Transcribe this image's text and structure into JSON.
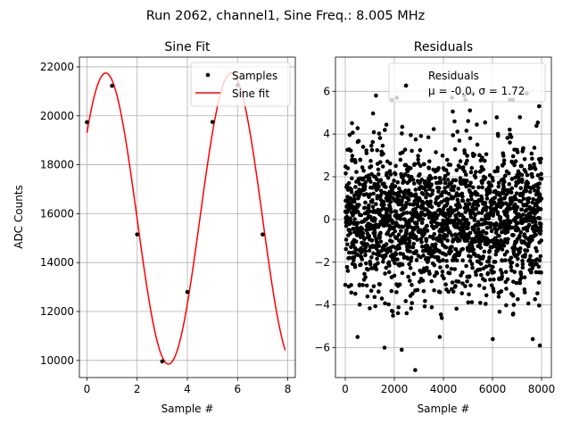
{
  "figure": {
    "suptitle": "Run 2062, channel1, Sine Freq.: 8.005 MHz"
  },
  "chart_data": [
    {
      "type": "line",
      "title": "Sine Fit",
      "xlabel": "Sample #",
      "ylabel": "ADC Counts",
      "xlim": [
        -0.3,
        8.3
      ],
      "ylim": [
        9300,
        22400
      ],
      "xticks": [
        0,
        2,
        4,
        6,
        8
      ],
      "yticks": [
        10000,
        12000,
        14000,
        16000,
        18000,
        20000,
        22000
      ],
      "grid": true,
      "legend_position": "top-right",
      "legend": [
        "Samples",
        "Sine fit"
      ],
      "samples": {
        "name": "Samples",
        "x": [
          0,
          1,
          2,
          3,
          4,
          5,
          6,
          7
        ],
        "y": [
          19740,
          21230,
          15150,
          9960,
          12800,
          19750,
          21250,
          15150
        ]
      },
      "fit": {
        "name": "Sine fit",
        "color": "#ff0000",
        "offset": 15800,
        "amplitude": 5950,
        "cycles_per_sample": 0.2,
        "phase_rad": 0.63,
        "x_range": [
          0,
          7.9
        ]
      }
    },
    {
      "type": "scatter",
      "title": "Residuals",
      "xlabel": "Sample #",
      "ylabel": "",
      "xlim": [
        -400,
        8400
      ],
      "ylim": [
        -7.4,
        7.6
      ],
      "xticks": [
        0,
        2000,
        4000,
        6000,
        8000
      ],
      "yticks": [
        -6,
        -4,
        -2,
        0,
        2,
        4,
        6
      ],
      "grid": true,
      "legend_position": "top-right",
      "legend": [
        "Residuals",
        "μ = -0.0, σ = 1.72"
      ],
      "n_points": 8000,
      "mean": -0.0,
      "sigma": 1.72,
      "outliers": [
        {
          "x": 2850,
          "y": -7.05
        },
        {
          "x": 1600,
          "y": -6.0
        },
        {
          "x": 2300,
          "y": -6.1
        },
        {
          "x": 500,
          "y": -5.5
        },
        {
          "x": 3850,
          "y": -5.5
        },
        {
          "x": 7930,
          "y": -5.9
        },
        {
          "x": 1250,
          "y": 5.8
        },
        {
          "x": 2100,
          "y": 5.7
        },
        {
          "x": 4350,
          "y": 5.7
        },
        {
          "x": 4850,
          "y": 5.8
        },
        {
          "x": 5200,
          "y": 5.9
        },
        {
          "x": 7900,
          "y": 5.3
        },
        {
          "x": 2500,
          "y": 6.3
        },
        {
          "x": 7400,
          "y": 5.9
        }
      ]
    }
  ]
}
